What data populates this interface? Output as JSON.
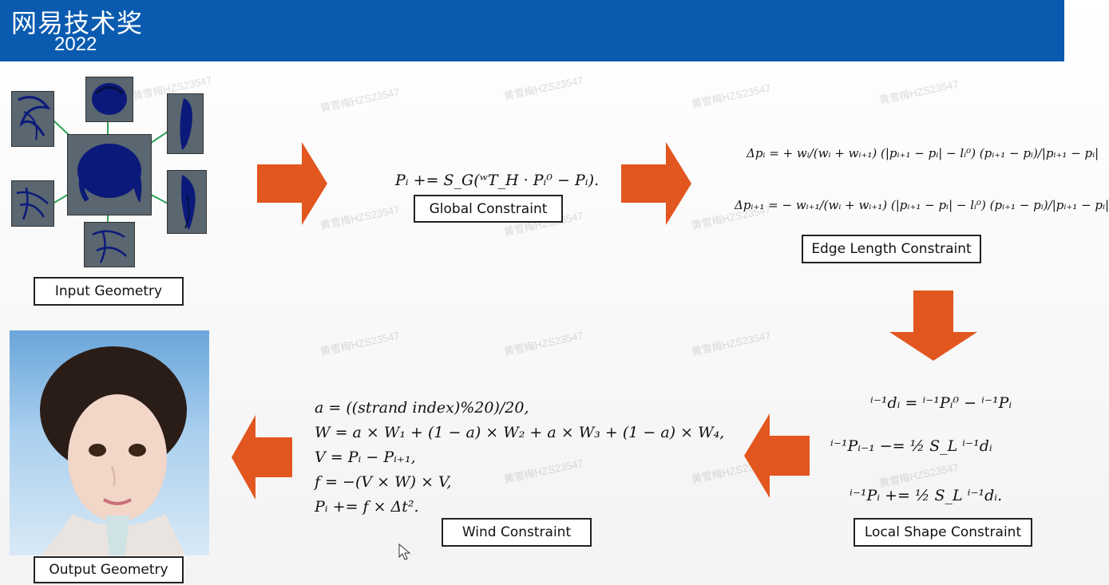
{
  "header": {
    "title": "网易技术奖",
    "year": "2022"
  },
  "labels": {
    "input_geometry": "Input Geometry",
    "global_constraint": "Global Constraint",
    "edge_length_constraint": "Edge Length Constraint",
    "local_shape_constraint": "Local Shape Constraint",
    "wind_constraint": "Wind Constraint",
    "output_geometry": "Output Geometry"
  },
  "watermark": "黄雪梅HZS23547",
  "colors": {
    "header": "#0a5bb0",
    "arrow": "#e2561f",
    "connector": "#2fa35a",
    "hair": "#0b1a7a"
  },
  "formulas": {
    "global": "Pᵢ += S_G(ʷT_H · Pᵢ⁰ − Pᵢ).",
    "edge1": "Δpᵢ = + wᵢ/(wᵢ + wᵢ₊₁) (|pᵢ₊₁ − pᵢ| − lᵢ⁰) (pᵢ₊₁ − pᵢ)/|pᵢ₊₁ − pᵢ|",
    "edge2": "Δpᵢ₊₁ = − wᵢ₊₁/(wᵢ + wᵢ₊₁) (|pᵢ₊₁ − pᵢ| − lᵢ⁰) (pᵢ₊₁ − pᵢ)/|pᵢ₊₁ − pᵢ|",
    "local1": "ⁱ⁻¹dᵢ = ⁱ⁻¹Pᵢ⁰ − ⁱ⁻¹Pᵢ",
    "local2": "ⁱ⁻¹Pᵢ₋₁ −= ½ S_L ⁱ⁻¹dᵢ",
    "local3": "ⁱ⁻¹Pᵢ += ½ S_L ⁱ⁻¹dᵢ.",
    "wind": [
      "a = ((strand index)%20)/20,",
      "W = a × W₁ + (1 − a) × W₂ + a × W₃ + (1 − a) × W₄,",
      "V = Pᵢ − Pᵢ₊₁,",
      "f = −(V × W) × V,",
      "Pᵢ += f × Δt²."
    ]
  }
}
